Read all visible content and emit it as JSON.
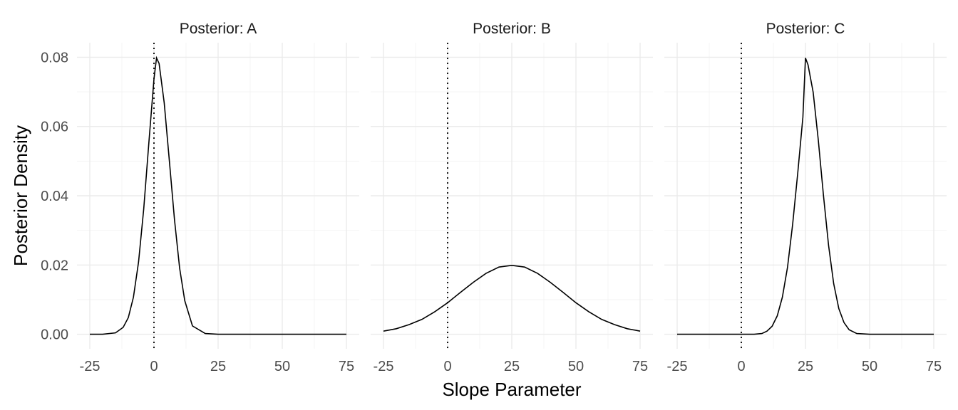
{
  "chart_data": {
    "type": "line",
    "xlabel": "Slope Parameter",
    "ylabel": "Posterior Density",
    "xlim": [
      -25,
      75
    ],
    "ylim": [
      0,
      0.08
    ],
    "x_ticks": [
      "-25",
      "0",
      "25",
      "50",
      "75"
    ],
    "y_ticks": [
      "0.00",
      "0.02",
      "0.04",
      "0.06",
      "0.08"
    ],
    "reference_line_x": 0,
    "reference_line_style": "dotted",
    "grid": true,
    "panels": [
      {
        "title": "Posterior: A",
        "x": [
          -25,
          -20,
          -15,
          -12,
          -10,
          -8,
          -6,
          -4,
          -2,
          0,
          1,
          2,
          4,
          6,
          8,
          10,
          12,
          15,
          20,
          25,
          50,
          75
        ],
        "y": [
          0.0,
          0.0,
          0.0004,
          0.002,
          0.0048,
          0.0107,
          0.0209,
          0.0361,
          0.0552,
          0.0737,
          0.0798,
          0.0782,
          0.0668,
          0.0501,
          0.0331,
          0.0191,
          0.0097,
          0.0024,
          0.0002,
          0.0,
          0.0,
          0.0
        ]
      },
      {
        "title": "Posterior: B",
        "x": [
          -25,
          -20,
          -15,
          -10,
          -5,
          0,
          5,
          10,
          15,
          20,
          25,
          30,
          35,
          40,
          45,
          50,
          55,
          60,
          65,
          70,
          75
        ],
        "y": [
          0.0009,
          0.0016,
          0.0028,
          0.0043,
          0.0065,
          0.0091,
          0.0121,
          0.015,
          0.0176,
          0.0194,
          0.0199,
          0.0194,
          0.0176,
          0.015,
          0.0121,
          0.0091,
          0.0065,
          0.0043,
          0.0028,
          0.0016,
          0.0009
        ]
      },
      {
        "title": "Posterior: C",
        "x": [
          -25,
          0,
          5,
          8,
          10,
          12,
          14,
          16,
          18,
          20,
          22,
          24,
          25,
          26,
          28,
          30,
          32,
          34,
          36,
          38,
          40,
          42,
          45,
          50,
          75
        ],
        "y": [
          0.0,
          0.0,
          0.0,
          0.0002,
          0.0009,
          0.0023,
          0.0053,
          0.0107,
          0.0193,
          0.0317,
          0.0466,
          0.0627,
          0.0798,
          0.0778,
          0.0699,
          0.0561,
          0.0402,
          0.0257,
          0.0146,
          0.0074,
          0.0034,
          0.0013,
          0.0002,
          0.0,
          0.0
        ]
      }
    ]
  }
}
